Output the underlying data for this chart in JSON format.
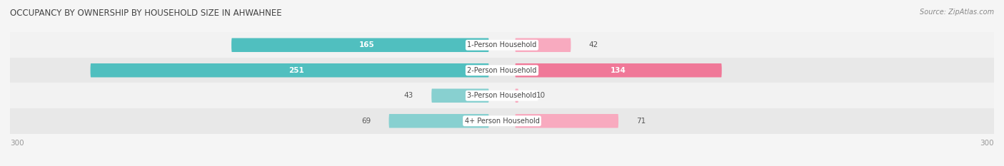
{
  "title": "OCCUPANCY BY OWNERSHIP BY HOUSEHOLD SIZE IN AHWAHNEE",
  "source": "Source: ZipAtlas.com",
  "categories": [
    "1-Person Household",
    "2-Person Household",
    "3-Person Household",
    "4+ Person Household"
  ],
  "owner_values": [
    165,
    251,
    43,
    69
  ],
  "renter_values": [
    42,
    134,
    10,
    71
  ],
  "max_scale": 300,
  "owner_color": "#50bfbf",
  "renter_color": "#f07898",
  "owner_color_light": "#88d0d0",
  "renter_color_light": "#f8aabf",
  "row_bg_light": "#f2f2f2",
  "row_bg_dark": "#e8e8e8",
  "label_color": "#555555",
  "title_color": "#444444",
  "source_color": "#888888",
  "axis_label_color": "#999999",
  "figsize": [
    14.06,
    2.33
  ],
  "dpi": 100
}
